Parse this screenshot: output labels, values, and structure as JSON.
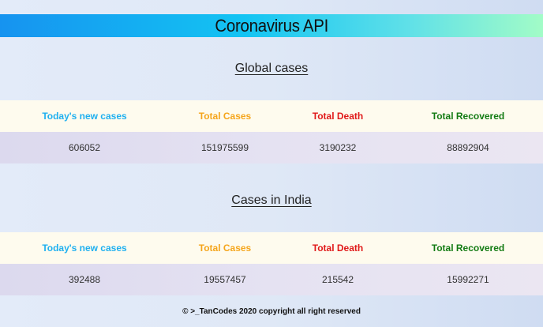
{
  "header": {
    "title": "Coronavirus API"
  },
  "global": {
    "title": "Global cases",
    "columns": [
      "Today's new cases",
      "Total Cases",
      "Total Death",
      "Total Recovered"
    ],
    "values": [
      "606052",
      "151975599",
      "3190232",
      "88892904"
    ]
  },
  "india": {
    "title": "Cases in India",
    "columns": [
      "Today's new cases",
      "Total Cases",
      "Total Death",
      "Total Recovered"
    ],
    "values": [
      "392488",
      "19557457",
      "215542",
      "15992271"
    ]
  },
  "footer": {
    "text": "© >_TanCodes 2020 copyright all right reserved"
  },
  "colors": {
    "new_cases": "#1fb0f0",
    "total_cases": "#f5a51b",
    "total_death": "#e01919",
    "total_recovered": "#137b13"
  }
}
